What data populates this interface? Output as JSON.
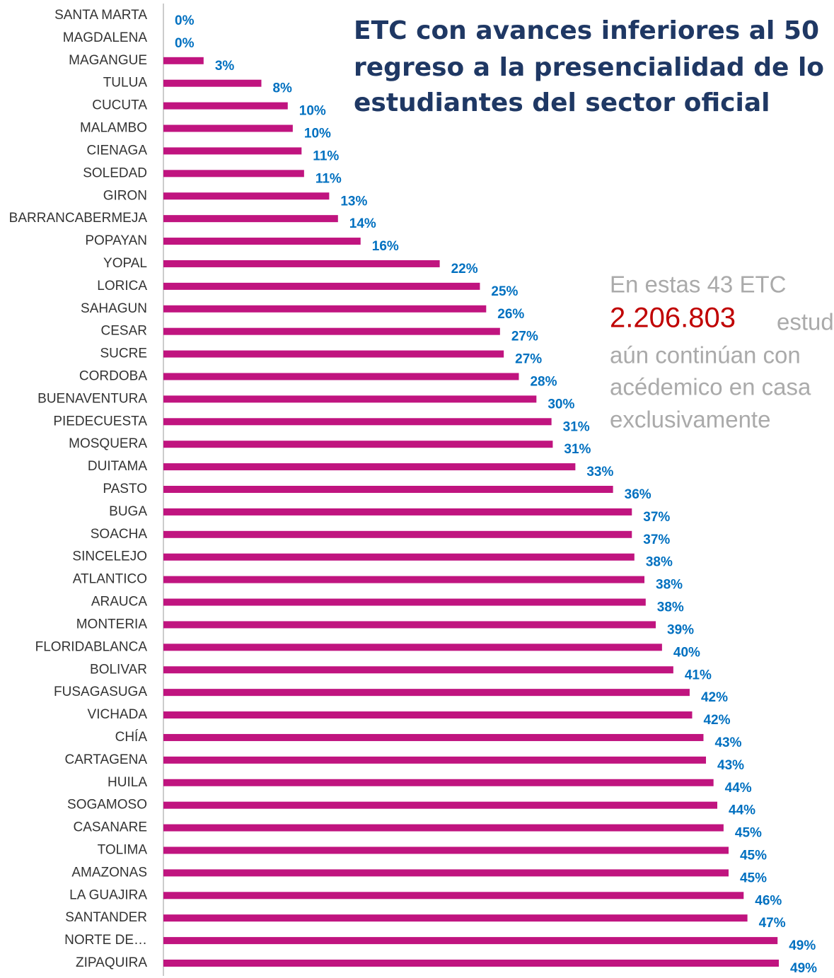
{
  "chart_data": {
    "type": "hbar",
    "title_lines": [
      "ETC con avances inferiores al 50",
      "regreso a la presencialidad de lo",
      "estudiantes del sector oficial"
    ],
    "annotation": {
      "line1": "En estas 43 ETC",
      "number": "2.206.803",
      "number_suffix": "estud",
      "line3": "aún continúan con",
      "line4": "acédemico en casa",
      "line5": "exclusivamente"
    },
    "categories": [
      "SANTA MARTA",
      "MAGDALENA",
      "MAGANGUE",
      "TULUA",
      "CUCUTA",
      "MALAMBO",
      "CIENAGA",
      "SOLEDAD",
      "GIRON",
      "BARRANCABERMEJA",
      "POPAYAN",
      "YOPAL",
      "LORICA",
      "SAHAGUN",
      "CESAR",
      "SUCRE",
      "CORDOBA",
      "BUENAVENTURA",
      "PIEDECUESTA",
      "MOSQUERA",
      "DUITAMA",
      "PASTO",
      "BUGA",
      "SOACHA",
      "SINCELEJO",
      "ATLANTICO",
      "ARAUCA",
      "MONTERIA",
      "FLORIDABLANCA",
      "BOLIVAR",
      "FUSAGASUGA",
      "VICHADA",
      "CHÍA",
      "CARTAGENA",
      "HUILA",
      "SOGAMOSO",
      "CASANARE",
      "TOLIMA",
      "AMAZONAS",
      "LA GUAJIRA",
      "SANTANDER",
      "NORTE DE…",
      "ZIPAQUIRA"
    ],
    "values": [
      0,
      0,
      3.2,
      7.8,
      9.9,
      10.3,
      11.0,
      11.2,
      13.2,
      13.9,
      15.7,
      22.0,
      25.2,
      25.7,
      26.8,
      27.1,
      28.3,
      29.7,
      30.9,
      31.0,
      32.8,
      35.8,
      37.3,
      37.3,
      37.5,
      38.3,
      38.4,
      39.2,
      39.7,
      40.6,
      41.9,
      42.1,
      43.0,
      43.2,
      43.8,
      44.1,
      44.6,
      45.0,
      45.0,
      46.2,
      46.5,
      48.9,
      49.0
    ],
    "value_labels": [
      "0%",
      "0%",
      "3%",
      "8%",
      "10%",
      "10%",
      "11%",
      "11%",
      "13%",
      "14%",
      "16%",
      "22%",
      "25%",
      "26%",
      "27%",
      "27%",
      "28%",
      "30%",
      "31%",
      "31%",
      "33%",
      "36%",
      "37%",
      "37%",
      "38%",
      "38%",
      "38%",
      "39%",
      "40%",
      "41%",
      "42%",
      "42%",
      "43%",
      "43%",
      "44%",
      "44%",
      "45%",
      "45%",
      "45%",
      "46%",
      "47%",
      "49%",
      "49%"
    ],
    "color": "#c0147f",
    "label_color": "#0070c0"
  }
}
